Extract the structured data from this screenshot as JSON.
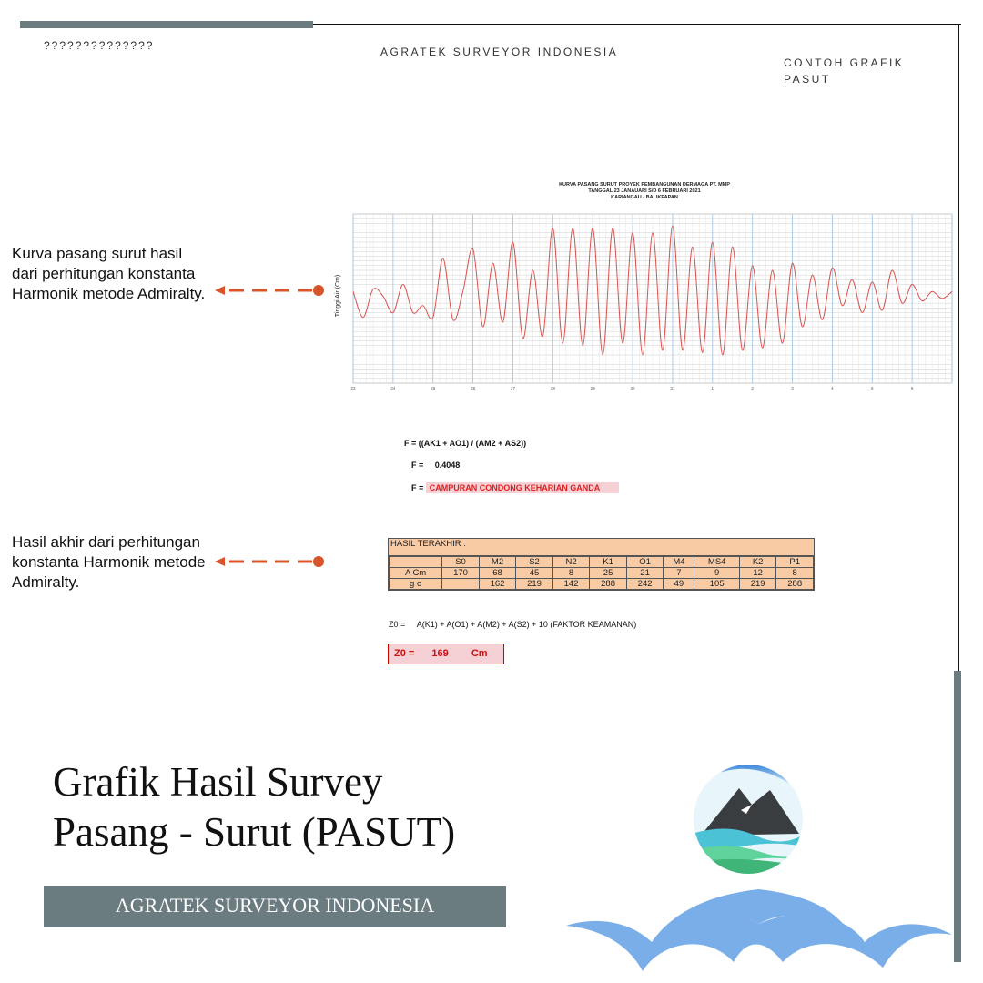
{
  "header": {
    "left_text": "??????????????",
    "center_text": "AGRATEK SURVEYOR INDONESIA",
    "right_text": "CONTOH GRAFIK PASUT"
  },
  "callouts": {
    "chart_note": "Kurva pasang surut hasil dari perhitungan konstanta Harmonik metode Admiralty.",
    "table_note": "Hasil akhir dari perhitungan konstanta Harmonik metode Admiralty."
  },
  "chart_data": {
    "type": "line",
    "title_lines": [
      "KURVA PASANG SURUT PROYEK PEMBANGUNAN DERMAGA PT. MMP",
      "TANGGAL 23 JANAUARI S/D 6 FEBRUARI 2021",
      "KARIANGAU - BALIKPAPAN"
    ],
    "xlabel": "",
    "ylabel": "Tinggi Air (Cm)",
    "x_ticks": [
      "23",
      "24",
      "25",
      "26",
      "27",
      "28",
      "29",
      "30",
      "31",
      "1",
      "2",
      "3",
      "4",
      "5",
      "6"
    ],
    "xlim": [
      23,
      38
    ],
    "ylim": [
      0,
      360
    ],
    "grid": true,
    "series": [
      {
        "color": "#d9534f",
        "x": [
          23.0,
          23.25,
          23.5,
          23.75,
          24.0,
          24.25,
          24.5,
          24.75,
          25.0,
          25.25,
          25.5,
          25.75,
          26.0,
          26.25,
          26.5,
          26.75,
          27.0,
          27.25,
          27.5,
          27.75,
          28.0,
          28.25,
          28.5,
          28.75,
          29.0,
          29.25,
          29.5,
          29.75,
          30.0,
          30.25,
          30.5,
          30.75,
          31.0,
          31.25,
          31.5,
          31.75,
          32.0,
          32.25,
          32.5,
          32.75,
          33.0,
          33.25,
          33.5,
          33.75,
          34.0,
          34.25,
          34.5,
          34.75,
          35.0,
          35.25,
          35.5,
          35.75,
          36.0,
          36.25,
          36.5,
          36.75,
          37.0,
          37.25,
          37.5,
          37.75,
          38.0
        ],
        "y": [
          195,
          140,
          200,
          185,
          150,
          210,
          150,
          165,
          140,
          265,
          135,
          195,
          285,
          120,
          255,
          130,
          300,
          95,
          240,
          100,
          330,
          85,
          330,
          80,
          330,
          60,
          330,
          85,
          320,
          60,
          320,
          70,
          335,
          70,
          290,
          65,
          300,
          60,
          290,
          70,
          250,
          75,
          240,
          85,
          255,
          120,
          230,
          135,
          245,
          165,
          220,
          150,
          215,
          155,
          240,
          170,
          210,
          175,
          195,
          180,
          195
        ]
      }
    ]
  },
  "formulas": {
    "f_def": "F = ((AK1 + AO1) / (AM2 + AS2))",
    "f_val_label": "F =",
    "f_val": "0.4048",
    "f_type_label": "F =",
    "f_type": "CAMPURAN CONDONG KEHARIAN GANDA",
    "z0_formula_label": "Z0    =",
    "z0_formula": "A(K1) + A(O1) + A(M2) + A(S2) + 10  (FAKTOR KEAMANAN)",
    "z0_result_label": "Z0  =",
    "z0_result_value": "169",
    "z0_result_unit": "Cm"
  },
  "result_table": {
    "title": "HASIL  TERAKHIR  :",
    "headers": [
      "",
      "S0",
      "M2",
      "S2",
      "N2",
      "K1",
      "O1",
      "M4",
      "MS4",
      "K2",
      "P1"
    ],
    "rows": [
      [
        "A   Cm",
        "170",
        "68",
        "45",
        "8",
        "25",
        "21",
        "7",
        "9",
        "12",
        "8"
      ],
      [
        "g o",
        "",
        "162",
        "219",
        "142",
        "288",
        "242",
        "49",
        "105",
        "219",
        "288"
      ]
    ],
    "fill_color": "#f8cba5"
  },
  "footer": {
    "title_line1": "Grafik Hasil Survey",
    "title_line2": "Pasang - Surut (PASUT)",
    "banner": "AGRATEK SURVEYOR INDONESIA"
  },
  "icons": {
    "logo": "mountain-wave-logo-icon",
    "arrow": "dashed-arrow-icon",
    "waves": "wave-decoration-icon"
  },
  "colors": {
    "accent_gray": "#6b7c80",
    "arrow_orange": "#d9542b",
    "wave_blue": "#7aaee8"
  }
}
